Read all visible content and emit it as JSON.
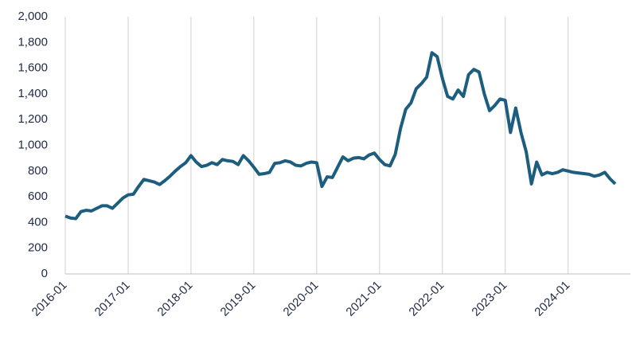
{
  "chart_data": {
    "type": "line",
    "categories": [
      "2016-01",
      null,
      null,
      null,
      null,
      null,
      null,
      null,
      null,
      null,
      null,
      null,
      "2017-01",
      null,
      null,
      null,
      null,
      null,
      null,
      null,
      null,
      null,
      null,
      null,
      "2018-01",
      null,
      null,
      null,
      null,
      null,
      null,
      null,
      null,
      null,
      null,
      null,
      "2019-01",
      null,
      null,
      null,
      null,
      null,
      null,
      null,
      null,
      null,
      null,
      null,
      "2020-01",
      null,
      null,
      null,
      null,
      null,
      null,
      null,
      null,
      null,
      null,
      null,
      "2021-01",
      null,
      null,
      null,
      null,
      null,
      null,
      null,
      null,
      null,
      null,
      null,
      "2022-01",
      null,
      null,
      null,
      null,
      null,
      null,
      null,
      null,
      null,
      null,
      null,
      "2023-01",
      null,
      null,
      null,
      null,
      null,
      null,
      null,
      null,
      null,
      null,
      null,
      "2024-01",
      null,
      null,
      null,
      null,
      null,
      null,
      null,
      null,
      null
    ],
    "series": [
      {
        "color": "#1d5e7e",
        "values": [
          450,
          435,
          430,
          485,
          495,
          490,
          510,
          530,
          530,
          510,
          550,
          590,
          615,
          620,
          680,
          735,
          725,
          715,
          695,
          725,
          760,
          800,
          835,
          865,
          920,
          870,
          835,
          845,
          865,
          850,
          890,
          880,
          875,
          850,
          920,
          880,
          830,
          775,
          780,
          790,
          860,
          865,
          880,
          870,
          845,
          840,
          860,
          870,
          865,
          680,
          755,
          750,
          830,
          910,
          880,
          900,
          905,
          895,
          925,
          940,
          890,
          850,
          840,
          930,
          1130,
          1280,
          1330,
          1440,
          1480,
          1530,
          1720,
          1690,
          1520,
          1380,
          1360,
          1430,
          1380,
          1550,
          1590,
          1570,
          1400,
          1270,
          1310,
          1360,
          1350,
          1100,
          1290,
          1100,
          950,
          700,
          870,
          770,
          790,
          780,
          790,
          810,
          800,
          790,
          785,
          780,
          775,
          760,
          770,
          790,
          740,
          700
        ]
      }
    ],
    "ylim": [
      0,
      2000
    ],
    "yticks": [
      0,
      200,
      400,
      600,
      800,
      {
        "value": 1000,
        "label": "1,000"
      },
      {
        "value": 1200,
        "label": "1,200"
      },
      {
        "value": 1400,
        "label": "1,400"
      },
      {
        "value": 1600,
        "label": "1,600"
      },
      {
        "value": 1800,
        "label": "1,800"
      },
      {
        "value": 2000,
        "label": "2,000"
      }
    ],
    "grid": "x"
  }
}
